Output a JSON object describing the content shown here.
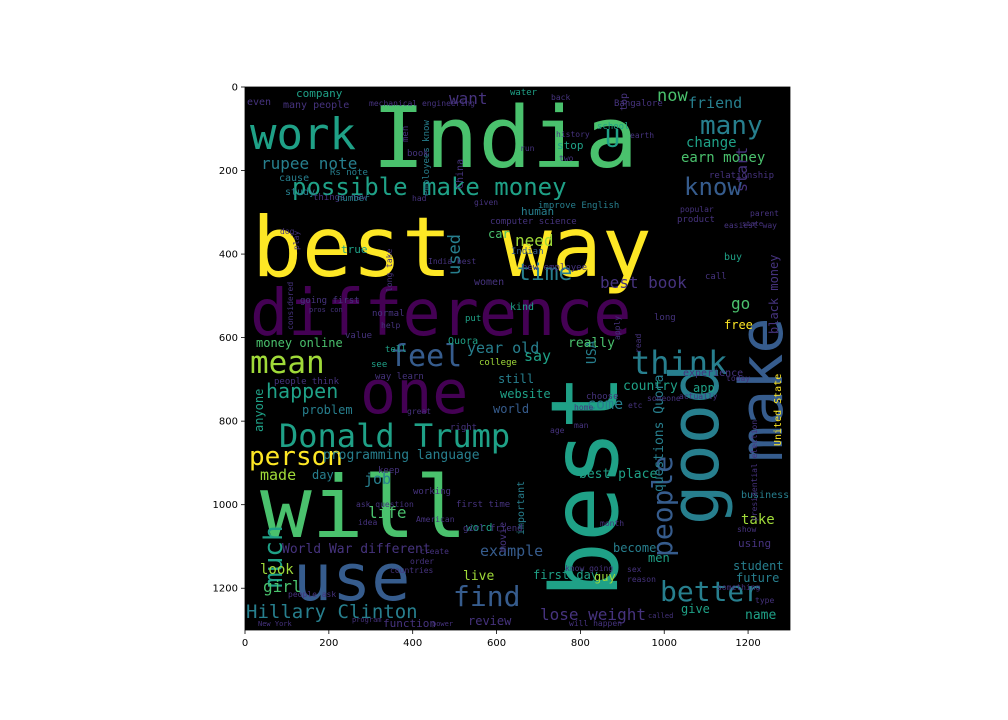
{
  "palette": {
    "dark_purple": "#440154",
    "indigo": "#46337e",
    "blue": "#365c8d",
    "teal": "#277f8e",
    "green_teal": "#1fa187",
    "green": "#4ac16d",
    "yellow_green": "#a0da39",
    "yellow": "#fde725",
    "background": "#000000"
  },
  "axes": {
    "x_ticks": [
      "0",
      "200",
      "400",
      "600",
      "800",
      "1000",
      "1200"
    ],
    "y_ticks": [
      "0",
      "200",
      "400",
      "600",
      "800",
      "1000",
      "1200"
    ]
  },
  "words": [
    {
      "text": "India",
      "color": "green"
    },
    {
      "text": "best way",
      "color": "yellow"
    },
    {
      "text": "difference",
      "color": "dark_purple"
    },
    {
      "text": "will",
      "color": "green"
    },
    {
      "text": "best",
      "color": "green_teal"
    },
    {
      "text": "one",
      "color": "dark_purple"
    },
    {
      "text": "make",
      "color": "blue"
    },
    {
      "text": "good",
      "color": "teal"
    },
    {
      "text": "use",
      "color": "blue"
    },
    {
      "text": "Donald Trump",
      "color": "green_teal"
    },
    {
      "text": "work",
      "color": "green_teal"
    },
    {
      "text": "mean",
      "color": "yellow_green"
    },
    {
      "text": "think",
      "color": "teal"
    },
    {
      "text": "possible make money",
      "color": "green_teal"
    },
    {
      "text": "know",
      "color": "blue"
    },
    {
      "text": "many",
      "color": "teal"
    },
    {
      "text": "feel",
      "color": "blue"
    },
    {
      "text": "person",
      "color": "yellow"
    },
    {
      "text": "much",
      "color": "green_teal"
    },
    {
      "text": "people",
      "color": "blue"
    },
    {
      "text": "better",
      "color": "teal"
    },
    {
      "text": "find",
      "color": "blue"
    },
    {
      "text": "Hillary Clinton",
      "color": "teal"
    },
    {
      "text": "time",
      "color": "teal"
    },
    {
      "text": "best book",
      "color": "indigo"
    },
    {
      "text": "happen",
      "color": "green_teal"
    },
    {
      "text": "lose weight",
      "color": "indigo"
    },
    {
      "text": "rupee note",
      "color": "teal"
    },
    {
      "text": "want",
      "color": "indigo"
    },
    {
      "text": "now",
      "color": "green"
    },
    {
      "text": "friend",
      "color": "teal"
    },
    {
      "text": "change",
      "color": "green_teal"
    },
    {
      "text": "earn money",
      "color": "green"
    },
    {
      "text": "start",
      "color": "indigo"
    },
    {
      "text": "go",
      "color": "green"
    },
    {
      "text": "free",
      "color": "yellow"
    },
    {
      "text": "black money",
      "color": "indigo"
    },
    {
      "text": "U",
      "color": "green_teal"
    },
    {
      "text": "used",
      "color": "teal"
    },
    {
      "text": "need",
      "color": "yellow_green"
    },
    {
      "text": "car",
      "color": "green"
    },
    {
      "text": "year old",
      "color": "teal"
    },
    {
      "text": "say",
      "color": "green_teal"
    },
    {
      "text": "country",
      "color": "green_teal"
    },
    {
      "text": "app",
      "color": "green_teal"
    },
    {
      "text": "USA",
      "color": "teal"
    },
    {
      "text": "really",
      "color": "green"
    },
    {
      "text": "still",
      "color": "teal"
    },
    {
      "text": "website",
      "color": "green_teal"
    },
    {
      "text": "world",
      "color": "blue"
    },
    {
      "text": "come",
      "color": "teal"
    },
    {
      "text": "money online",
      "color": "green"
    },
    {
      "text": "problem",
      "color": "teal"
    },
    {
      "text": "anyone",
      "color": "green_teal"
    },
    {
      "text": "programming language",
      "color": "teal"
    },
    {
      "text": "made",
      "color": "yellow_green"
    },
    {
      "text": "day",
      "color": "teal"
    },
    {
      "text": "job",
      "color": "teal"
    },
    {
      "text": "life",
      "color": "green"
    },
    {
      "text": "best place",
      "color": "green_teal"
    },
    {
      "text": "questions Quora",
      "color": "teal"
    },
    {
      "text": "take",
      "color": "yellow_green"
    },
    {
      "text": "business",
      "color": "teal"
    },
    {
      "text": "example",
      "color": "blue"
    },
    {
      "text": "become",
      "color": "teal"
    },
    {
      "text": "men",
      "color": "green_teal"
    },
    {
      "text": "student",
      "color": "teal"
    },
    {
      "text": "future",
      "color": "teal"
    },
    {
      "text": "World War different",
      "color": "indigo"
    },
    {
      "text": "look",
      "color": "yellow_green"
    },
    {
      "text": "girl",
      "color": "green"
    },
    {
      "text": "live",
      "color": "yellow_green"
    },
    {
      "text": "first day",
      "color": "green_teal"
    },
    {
      "text": "guy",
      "color": "yellow_green"
    },
    {
      "text": "give",
      "color": "green_teal"
    },
    {
      "text": "name",
      "color": "green_teal"
    },
    {
      "text": "review",
      "color": "indigo"
    },
    {
      "text": "function",
      "color": "indigo"
    },
    {
      "text": "company",
      "color": "green_teal"
    },
    {
      "text": "even",
      "color": "indigo"
    },
    {
      "text": "many people",
      "color": "indigo"
    },
    {
      "text": "cause",
      "color": "teal"
    },
    {
      "text": "study",
      "color": "teal"
    },
    {
      "text": "human",
      "color": "teal"
    },
    {
      "text": "Indian",
      "color": "blue"
    },
    {
      "text": "women",
      "color": "indigo"
    },
    {
      "text": "United State",
      "color": "yellow"
    },
    {
      "text": "using",
      "color": "indigo"
    },
    {
      "text": "stop",
      "color": "green_teal"
    },
    {
      "text": "top",
      "color": "indigo"
    },
    {
      "text": "school",
      "color": "green_teal"
    },
    {
      "text": "relationship",
      "color": "indigo"
    },
    {
      "text": "improve English",
      "color": "teal"
    },
    {
      "text": "computer science",
      "color": "indigo"
    },
    {
      "text": "Rs note",
      "color": "teal"
    },
    {
      "text": "China",
      "color": "indigo"
    },
    {
      "text": "movie",
      "color": "indigo"
    },
    {
      "text": "important",
      "color": "teal"
    },
    {
      "text": "word",
      "color": "green_teal"
    },
    {
      "text": "Quora",
      "color": "green_teal"
    },
    {
      "text": "experience",
      "color": "indigo"
    },
    {
      "text": "true",
      "color": "green_teal"
    },
    {
      "text": "kind",
      "color": "green_teal"
    },
    {
      "text": "water",
      "color": "green_teal"
    },
    {
      "text": "Bangalore",
      "color": "indigo"
    },
    {
      "text": "history",
      "color": "indigo"
    },
    {
      "text": "earth",
      "color": "indigo"
    },
    {
      "text": "parent",
      "color": "indigo"
    },
    {
      "text": "buy",
      "color": "green_teal"
    },
    {
      "text": "call",
      "color": "indigo"
    },
    {
      "text": "long",
      "color": "indigo"
    },
    {
      "text": "normal",
      "color": "indigo"
    },
    {
      "text": "put",
      "color": "green_teal"
    },
    {
      "text": "value",
      "color": "indigo"
    },
    {
      "text": "help",
      "color": "indigo"
    },
    {
      "text": "tell",
      "color": "green_teal"
    },
    {
      "text": "see",
      "color": "green_teal"
    },
    {
      "text": "way learn",
      "color": "indigo"
    },
    {
      "text": "college",
      "color": "yellow_green"
    },
    {
      "text": "choose",
      "color": "indigo"
    },
    {
      "text": "right",
      "color": "indigo"
    },
    {
      "text": "keep",
      "color": "indigo"
    },
    {
      "text": "working",
      "color": "indigo"
    },
    {
      "text": "ask question",
      "color": "indigo"
    },
    {
      "text": "people think",
      "color": "indigo"
    },
    {
      "text": "show",
      "color": "indigo"
    },
    {
      "text": "something",
      "color": "indigo"
    },
    {
      "text": "type",
      "color": "indigo"
    },
    {
      "text": "presidential election",
      "color": "indigo"
    },
    {
      "text": "create",
      "color": "indigo"
    },
    {
      "text": "order",
      "color": "indigo"
    },
    {
      "text": "countries",
      "color": "indigo"
    },
    {
      "text": "people ask",
      "color": "indigo"
    },
    {
      "text": "know going",
      "color": "indigo"
    },
    {
      "text": "sex",
      "color": "indigo"
    },
    {
      "text": "reason",
      "color": "indigo"
    },
    {
      "text": "will happen",
      "color": "indigo"
    },
    {
      "text": "first time",
      "color": "indigo"
    },
    {
      "text": "girl friend",
      "color": "indigo"
    },
    {
      "text": "American",
      "color": "indigo"
    },
    {
      "text": "idea",
      "color": "indigo"
    },
    {
      "text": "great",
      "color": "indigo"
    },
    {
      "text": "considered",
      "color": "indigo"
    },
    {
      "text": "going first",
      "color": "indigo"
    },
    {
      "text": "pros con",
      "color": "indigo"
    },
    {
      "text": "long take",
      "color": "indigo"
    },
    {
      "text": "things new",
      "color": "indigo"
    },
    {
      "text": "number",
      "color": "teal"
    },
    {
      "text": "employees know",
      "color": "teal"
    },
    {
      "text": "new employee",
      "color": "indigo"
    },
    {
      "text": "product",
      "color": "indigo"
    },
    {
      "text": "popular",
      "color": "indigo"
    },
    {
      "text": "easiest way",
      "color": "indigo"
    },
    {
      "text": "play",
      "color": "indigo"
    },
    {
      "text": "India best",
      "color": "indigo"
    },
    {
      "text": "read",
      "color": "indigo"
    },
    {
      "text": "apply",
      "color": "indigo"
    },
    {
      "text": "someone",
      "color": "indigo"
    },
    {
      "text": "actually",
      "color": "indigo"
    },
    {
      "text": "today",
      "color": "indigo"
    },
    {
      "text": "etc",
      "color": "indigo"
    },
    {
      "text": "man",
      "color": "indigo"
    },
    {
      "text": "age",
      "color": "indigo"
    },
    {
      "text": "home",
      "color": "indigo"
    },
    {
      "text": "had",
      "color": "indigo"
    },
    {
      "text": "month",
      "color": "indigo"
    },
    {
      "text": "men",
      "color": "indigo"
    },
    {
      "text": "book",
      "color": "indigo"
    },
    {
      "text": "two",
      "color": "indigo"
    },
    {
      "text": "run",
      "color": "indigo"
    },
    {
      "text": "back",
      "color": "indigo"
    },
    {
      "text": "given",
      "color": "indigo"
    },
    {
      "text": "program",
      "color": "indigo"
    },
    {
      "text": "power",
      "color": "indigo"
    },
    {
      "text": "New York",
      "color": "indigo"
    },
    {
      "text": "called",
      "color": "indigo"
    },
    {
      "text": "mechanical engineering",
      "color": "indigo"
    },
    {
      "text": "state",
      "color": "indigo"
    },
    {
      "text": "dog",
      "color": "indigo"
    },
    {
      "text": "love",
      "color": "indigo"
    }
  ]
}
